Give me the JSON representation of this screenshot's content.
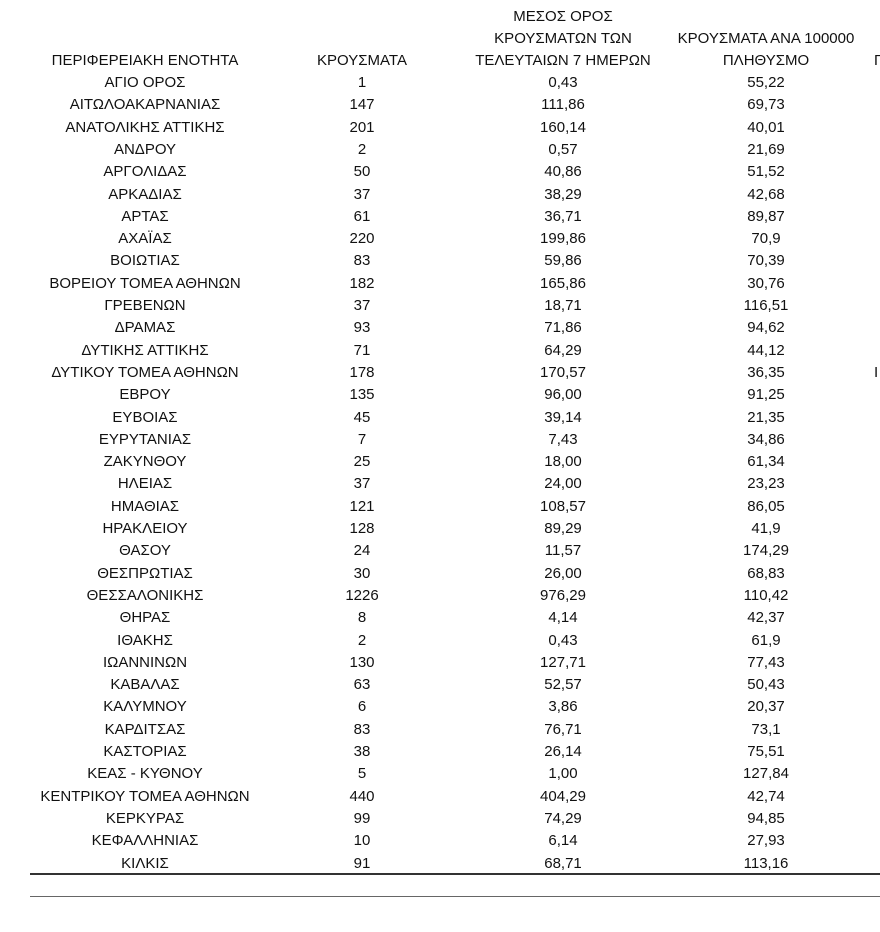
{
  "table": {
    "header": [
      [
        "ΠΕΡΙΦΕΡΕΙΑΚΗ ΕΝΟΤΗΤΑ"
      ],
      [
        "ΚΡΟΥΣΜΑΤΑ"
      ],
      [
        "ΜΕΣΟΣ ΟΡΟΣ",
        "ΚΡΟΥΣΜΑΤΩΝ ΤΩΝ",
        "ΤΕΛΕΥΤΑΙΩΝ 7 ΗΜΕΡΩΝ"
      ],
      [
        "ΚΡΟΥΣΜΑΤΑ ΑΝΑ 100000",
        "ΠΛΗΘΥΣΜΟ"
      ],
      [
        "Γ"
      ]
    ],
    "rows": [
      [
        "ΑΓΙΟ ΟΡΟΣ",
        "1",
        "0,43",
        "55,22"
      ],
      [
        "ΑΙΤΩΛΟΑΚΑΡΝΑΝΙΑΣ",
        "147",
        "111,86",
        "69,73"
      ],
      [
        "ΑΝΑΤΟΛΙΚΗΣ ΑΤΤΙΚΗΣ",
        "201",
        "160,14",
        "40,01"
      ],
      [
        "ΑΝΔΡΟΥ",
        "2",
        "0,57",
        "21,69"
      ],
      [
        "ΑΡΓΟΛΙΔΑΣ",
        "50",
        "40,86",
        "51,52"
      ],
      [
        "ΑΡΚΑΔΙΑΣ",
        "37",
        "38,29",
        "42,68"
      ],
      [
        "ΑΡΤΑΣ",
        "61",
        "36,71",
        "89,87"
      ],
      [
        "ΑΧΑΪΑΣ",
        "220",
        "199,86",
        "70,9"
      ],
      [
        "ΒΟΙΩΤΙΑΣ",
        "83",
        "59,86",
        "70,39"
      ],
      [
        "ΒΟΡΕΙΟΥ ΤΟΜΕΑ ΑΘΗΝΩΝ",
        "182",
        "165,86",
        "30,76"
      ],
      [
        "ΓΡΕΒΕΝΩΝ",
        "37",
        "18,71",
        "116,51"
      ],
      [
        "ΔΡΑΜΑΣ",
        "93",
        "71,86",
        "94,62"
      ],
      [
        "ΔΥΤΙΚΗΣ ΑΤΤΙΚΗΣ",
        "71",
        "64,29",
        "44,12"
      ],
      [
        "ΔΥΤΙΚΟΥ ΤΟΜΕΑ ΑΘΗΝΩΝ",
        "178",
        "170,57",
        "36,35",
        "Ι"
      ],
      [
        "ΕΒΡΟΥ",
        "135",
        "96,00",
        "91,25"
      ],
      [
        "ΕΥΒΟΙΑΣ",
        "45",
        "39,14",
        "21,35"
      ],
      [
        "ΕΥΡΥΤΑΝΙΑΣ",
        "7",
        "7,43",
        "34,86"
      ],
      [
        "ΖΑΚΥΝΘΟΥ",
        "25",
        "18,00",
        "61,34"
      ],
      [
        "ΗΛΕΙΑΣ",
        "37",
        "24,00",
        "23,23"
      ],
      [
        "ΗΜΑΘΙΑΣ",
        "121",
        "108,57",
        "86,05"
      ],
      [
        "ΗΡΑΚΛΕΙΟΥ",
        "128",
        "89,29",
        "41,9"
      ],
      [
        "ΘΑΣΟΥ",
        "24",
        "11,57",
        "174,29"
      ],
      [
        "ΘΕΣΠΡΩΤΙΑΣ",
        "30",
        "26,00",
        "68,83"
      ],
      [
        "ΘΕΣΣΑΛΟΝΙΚΗΣ",
        "1226",
        "976,29",
        "110,42"
      ],
      [
        "ΘΗΡΑΣ",
        "8",
        "4,14",
        "42,37"
      ],
      [
        "ΙΘΑΚΗΣ",
        "2",
        "0,43",
        "61,9"
      ],
      [
        "ΙΩΑΝΝΙΝΩΝ",
        "130",
        "127,71",
        "77,43"
      ],
      [
        "ΚΑΒΑΛΑΣ",
        "63",
        "52,57",
        "50,43"
      ],
      [
        "ΚΑΛΥΜΝΟΥ",
        "6",
        "3,86",
        "20,37"
      ],
      [
        "ΚΑΡΔΙΤΣΑΣ",
        "83",
        "76,71",
        "73,1"
      ],
      [
        "ΚΑΣΤΟΡΙΑΣ",
        "38",
        "26,14",
        "75,51"
      ],
      [
        "ΚΕΑΣ - ΚΥΘΝΟΥ",
        "5",
        "1,00",
        "127,84"
      ],
      [
        "ΚΕΝΤΡΙΚΟΥ ΤΟΜΕΑ ΑΘΗΝΩΝ",
        "440",
        "404,29",
        "42,74"
      ],
      [
        "ΚΕΡΚΥΡΑΣ",
        "99",
        "74,29",
        "94,85"
      ],
      [
        "ΚΕΦΑΛΛΗΝΙΑΣ",
        "10",
        "6,14",
        "27,93"
      ],
      [
        "ΚΙΛΚΙΣ",
        "91",
        "68,71",
        "113,16"
      ]
    ]
  }
}
